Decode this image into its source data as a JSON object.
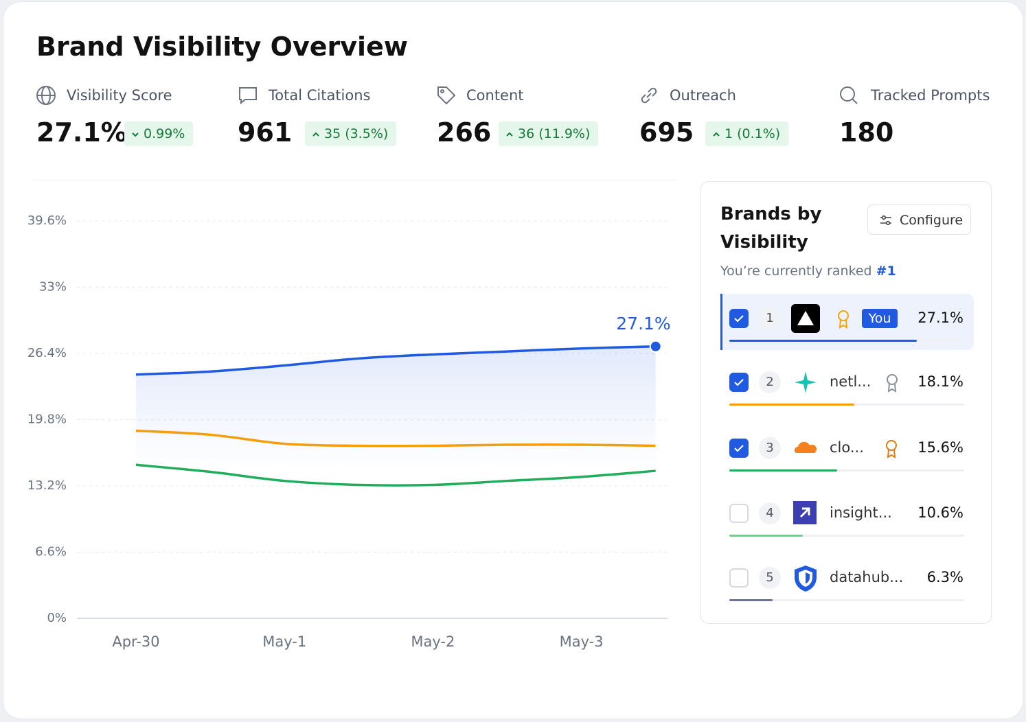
{
  "header": {
    "title": "Brand Visibility Overview"
  },
  "metrics": [
    {
      "label": "Visibility Score",
      "value": "27.1%",
      "delta": "0.99%"
    },
    {
      "label": "Total Citations",
      "value": "961",
      "delta": "35 (3.5%)"
    },
    {
      "label": "Content",
      "value": "266",
      "delta": "36 (11.9%)"
    },
    {
      "label": "Outreach",
      "value": "695",
      "delta": "1 (0.1%)"
    },
    {
      "label": "Tracked Prompts",
      "value": "180"
    }
  ],
  "chart_data": {
    "type": "line",
    "categories": [
      "Apr-30",
      null,
      "May-1",
      null,
      "May-2",
      null,
      "May-3",
      null
    ],
    "series": [
      {
        "color": "#1f5ae0",
        "values": [
          24.3,
          24.6,
          25.2,
          25.9,
          26.3,
          26.6,
          26.9,
          27.1
        ],
        "value_labels": [
          null,
          null,
          null,
          null,
          null,
          null,
          null,
          "27.1%"
        ]
      },
      {
        "color": "#f59e0b",
        "values": [
          18.7,
          18.3,
          17.4,
          17.2,
          17.2,
          17.3,
          17.3,
          17.2
        ]
      },
      {
        "color": "#21ad5c",
        "values": [
          15.3,
          14.6,
          13.7,
          13.3,
          13.3,
          13.7,
          14.1,
          14.7
        ]
      }
    ],
    "ylim": [
      0,
      39.6
    ],
    "yticks": [
      {
        "value": 0,
        "label": "0%"
      },
      {
        "value": 6.6,
        "label": "6.6%"
      },
      {
        "value": 13.2,
        "label": "13.2%"
      },
      {
        "value": 19.8,
        "label": "19.8%"
      },
      {
        "value": 26.4,
        "label": "26.4%"
      },
      {
        "value": 33,
        "label": "33%"
      },
      {
        "value": 39.6,
        "label": "39.6%"
      }
    ],
    "grid": true
  },
  "panel": {
    "title": "Brands by Visibility",
    "button": "Configure",
    "subtitle": "You’re currently ranked",
    "rank": "#1",
    "brands": [
      {
        "rank": "1",
        "badge": "You",
        "value": 27.1,
        "value_label": "27.1%",
        "color": "#1f5ae0",
        "checked": true
      },
      {
        "rank": "2",
        "name": "netl...",
        "value": 18.1,
        "value_label": "18.1%",
        "color": "#f59e0b",
        "checked": true
      },
      {
        "rank": "3",
        "name": "clo...",
        "value": 15.6,
        "value_label": "15.6%",
        "color": "#21ad5c",
        "checked": true
      },
      {
        "rank": "4",
        "name": "insight...",
        "value": 10.6,
        "value_label": "10.6%",
        "color": "#5fd68e",
        "checked": false
      },
      {
        "rank": "5",
        "name": "datahub...",
        "value": 6.3,
        "value_label": "6.3%",
        "color": "#6b7690",
        "checked": false
      }
    ]
  }
}
